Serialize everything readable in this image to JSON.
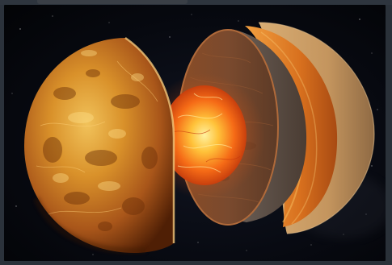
{
  "image": {
    "subject": "venus-interior-cutaway",
    "elements": [
      "crust-hemisphere",
      "molten-core",
      "mantle-slice",
      "mantle-layer",
      "outer-crust-shell",
      "starfield-background"
    ]
  },
  "colors": {
    "frame": "#2b323b",
    "space": "#05070d",
    "surface": "#c9801e",
    "surface_dark": "#6b2f08",
    "core_bright": "#ffd35a",
    "core": "#f25a14",
    "mantle": "#7a4a2c",
    "mantle_edge": "#a8673c",
    "shell_orange": "#e07c2a",
    "shell_tan": "#c89a62"
  }
}
